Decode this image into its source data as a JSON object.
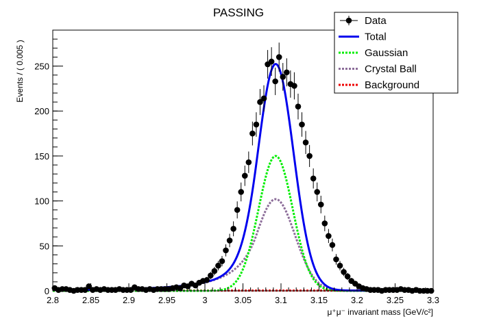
{
  "chart_data": {
    "type": "scatter",
    "title": "PASSING",
    "xlabel": "μ⁺μ⁻ invariant mass [GeV/c²]",
    "ylabel": "Events / ( 0.005 )",
    "xlim": [
      2.8,
      3.3
    ],
    "ylim": [
      0,
      290
    ],
    "x_ticks": [
      2.8,
      2.85,
      2.9,
      2.95,
      3.0,
      3.05,
      3.1,
      3.15,
      3.2,
      3.25,
      3.3
    ],
    "x_tick_labels": [
      "2.8",
      "2.85",
      "2.9",
      "2.95",
      "3",
      "3.05",
      "3.1",
      "3.15",
      "3.2",
      "3.25",
      "3.3"
    ],
    "y_ticks": [
      0,
      50,
      100,
      150,
      200,
      250
    ],
    "y_tick_labels": [
      "0",
      "50",
      "100",
      "150",
      "200",
      "250"
    ],
    "grid": false,
    "legend_position": "top-right",
    "legend": [
      "Data",
      "Total",
      "Gaussian",
      "Crystal Ball",
      "Background"
    ],
    "colors": {
      "data": "#000000",
      "total": "#0000ee",
      "gaussian": "#00ee00",
      "crystal_ball": "#8c6d99",
      "background": "#ee0000"
    },
    "data": {
      "name": "Data",
      "x": [
        2.8025,
        2.8075,
        2.8125,
        2.8175,
        2.8225,
        2.8275,
        2.8325,
        2.8375,
        2.8425,
        2.8475,
        2.8525,
        2.8575,
        2.8625,
        2.8675,
        2.8725,
        2.8775,
        2.8825,
        2.8875,
        2.8925,
        2.8975,
        2.9025,
        2.9075,
        2.9125,
        2.9175,
        2.9225,
        2.9275,
        2.9325,
        2.9375,
        2.9425,
        2.9475,
        2.9525,
        2.9575,
        2.9625,
        2.9675,
        2.9725,
        2.9775,
        2.9825,
        2.9875,
        2.9925,
        2.9975,
        3.0025,
        3.0075,
        3.0125,
        3.0175,
        3.0225,
        3.0275,
        3.0325,
        3.0375,
        3.0425,
        3.0475,
        3.0525,
        3.0575,
        3.0625,
        3.0675,
        3.0725,
        3.0775,
        3.0825,
        3.0875,
        3.0925,
        3.0975,
        3.1025,
        3.1075,
        3.1125,
        3.1175,
        3.1225,
        3.1275,
        3.1325,
        3.1375,
        3.1425,
        3.1475,
        3.1525,
        3.1575,
        3.1625,
        3.1675,
        3.1725,
        3.1775,
        3.1825,
        3.1875,
        3.1925,
        3.1975,
        3.2025,
        3.2075,
        3.2125,
        3.2175,
        3.2225,
        3.2275,
        3.2325,
        3.2375,
        3.2425,
        3.2475,
        3.2525,
        3.2575,
        3.2625,
        3.2675,
        3.2725,
        3.2775,
        3.2825,
        3.2875,
        3.2925,
        3.2975
      ],
      "y": [
        3,
        1,
        2,
        2,
        1,
        0,
        1,
        1,
        1,
        5,
        1,
        2,
        1,
        2,
        1,
        1,
        1,
        2,
        1,
        1,
        1,
        4,
        2,
        2,
        1,
        2,
        1,
        2,
        2,
        2,
        2,
        3,
        4,
        3,
        6,
        5,
        8,
        6,
        9,
        11,
        12,
        17,
        22,
        28,
        33,
        45,
        56,
        69,
        90,
        110,
        128,
        143,
        175,
        185,
        210,
        214,
        252,
        255,
        233,
        260,
        238,
        243,
        230,
        228,
        205,
        185,
        165,
        150,
        125,
        110,
        96,
        75,
        61,
        51,
        35,
        28,
        21,
        16,
        11,
        8,
        5,
        3,
        2,
        1,
        1,
        1,
        0,
        1,
        1,
        1,
        1,
        2,
        1,
        1,
        0,
        1,
        0,
        0,
        0,
        0
      ]
    },
    "series": [
      {
        "name": "Total",
        "model": {
          "mean": 3.093,
          "sigma_gauss": 0.0225,
          "peak_gauss": 150,
          "sigma_cb": 0.0255,
          "peak_cb": 102,
          "alpha": 1.0,
          "n": 3.0,
          "bkg": 0.3
        }
      },
      {
        "name": "Gaussian",
        "model": {
          "mean": 3.093,
          "sigma": 0.0225,
          "peak": 150
        }
      },
      {
        "name": "Crystal Ball",
        "model": {
          "mean": 3.093,
          "sigma": 0.0255,
          "peak": 102,
          "alpha": 1.0,
          "n": 3.0
        }
      },
      {
        "name": "Background",
        "model": {
          "level": 0.3
        }
      }
    ]
  }
}
